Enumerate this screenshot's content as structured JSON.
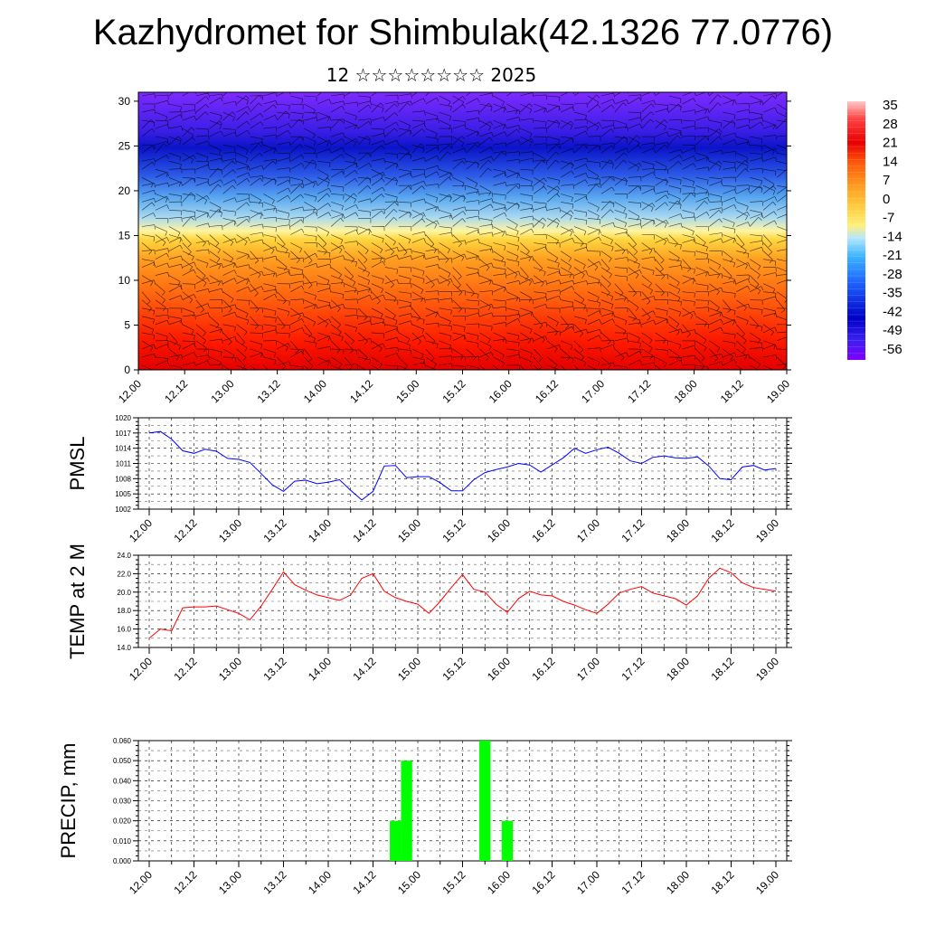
{
  "header": {
    "title": "Kazhydromet for Shimbulak(42.1326 77.0776)",
    "subtitle": "12 ☆☆☆☆☆☆☆☆ 2025"
  },
  "time_labels": [
    "12.00",
    "12.12",
    "13.00",
    "13.12",
    "14.00",
    "14.12",
    "15.00",
    "15.12",
    "16.00",
    "16.12",
    "17.00",
    "17.12",
    "18.00",
    "18.12",
    "19.00"
  ],
  "colors": {
    "pmsl_line": "#0000ff",
    "temp_line": "#ff0000",
    "precip_bar": "#00ff00",
    "colorbar": [
      "#7f00ff",
      "#3a1ff0",
      "#0000c8",
      "#1e64ff",
      "#3cb4ff",
      "#b4e6ff",
      "#fff07a",
      "#ffd23c",
      "#ffa21e",
      "#ff7814",
      "#ff3c0a",
      "#e60000",
      "#ff4040",
      "#ffb4b4"
    ]
  },
  "chart_data": [
    {
      "type": "heatmap",
      "name": "wind-temperature-cross-section",
      "x_labels": [
        "12.00",
        "12.12",
        "13.00",
        "13.12",
        "14.00",
        "14.12",
        "15.00",
        "15.12",
        "16.00",
        "16.12",
        "17.00",
        "17.12",
        "18.00",
        "18.12",
        "19.00"
      ],
      "y_ticks": [
        0,
        5,
        10,
        15,
        20,
        25,
        30
      ],
      "ylim": [
        0,
        31
      ],
      "colorbar_labels": [
        "35",
        "28",
        "21",
        "14",
        "7",
        "0",
        "-7",
        "-14",
        "-21",
        "-28",
        "-35",
        "-42",
        "-49",
        "-56"
      ],
      "colorbar_range": [
        -60,
        38
      ],
      "description_layers": "filled temperature with overlaid wind barbs"
    },
    {
      "type": "line",
      "ylabel": "PMSL",
      "y_ticks": [
        "1020",
        "1017",
        "1014",
        "1011",
        "1008",
        "1005",
        "1002"
      ],
      "ylim": [
        1002,
        1020
      ],
      "x_labels": [
        "12.00",
        "12.12",
        "13.00",
        "13.12",
        "14.00",
        "14.12",
        "15.00",
        "15.12",
        "16.00",
        "16.12",
        "17.00",
        "17.12",
        "18.00",
        "18.12",
        "19.00"
      ],
      "x": [
        0,
        1,
        2,
        3,
        4,
        5,
        6,
        7,
        8,
        9,
        10,
        11,
        12,
        13,
        14,
        15,
        16,
        17,
        18,
        19,
        20,
        21,
        22,
        23,
        24,
        25,
        26,
        27,
        28,
        29,
        30,
        31,
        32,
        33,
        34,
        35,
        36,
        37,
        38,
        39,
        40,
        41,
        42,
        43,
        44,
        45,
        46,
        47,
        48,
        49,
        50,
        51,
        52,
        53,
        54,
        55,
        56
      ],
      "values": [
        1017.0,
        1017.3,
        1015.8,
        1013.5,
        1013.0,
        1013.8,
        1013.4,
        1012.0,
        1011.8,
        1011.2,
        1009.0,
        1006.8,
        1005.5,
        1007.5,
        1007.7,
        1007.0,
        1007.3,
        1007.8,
        1005.7,
        1003.8,
        1005.5,
        1010.5,
        1010.6,
        1008.2,
        1008.4,
        1008.4,
        1007.2,
        1005.6,
        1005.6,
        1007.8,
        1009.2,
        1009.8,
        1010.3,
        1011.0,
        1010.7,
        1009.3,
        1010.7,
        1012.1,
        1014.0,
        1013.0,
        1013.7,
        1014.2,
        1013.0,
        1011.5,
        1011.0,
        1012.2,
        1012.5,
        1012.1,
        1012.0,
        1012.3,
        1010.5,
        1008.0,
        1007.8,
        1010.3,
        1010.6,
        1009.7,
        1010.0
      ]
    },
    {
      "type": "line",
      "ylabel": "TEMP at 2 M",
      "y_ticks": [
        "24.0",
        "22.0",
        "20.0",
        "18.0",
        "16.0",
        "14.0"
      ],
      "ylim": [
        14,
        24
      ],
      "x_labels": [
        "12.00",
        "12.12",
        "13.00",
        "13.12",
        "14.00",
        "14.12",
        "15.00",
        "15.12",
        "16.00",
        "16.12",
        "17.00",
        "17.12",
        "18.00",
        "18.12",
        "19.00"
      ],
      "x": [
        0,
        1,
        2,
        3,
        4,
        5,
        6,
        7,
        8,
        9,
        10,
        11,
        12,
        13,
        14,
        15,
        16,
        17,
        18,
        19,
        20,
        21,
        22,
        23,
        24,
        25,
        26,
        27,
        28,
        29,
        30,
        31,
        32,
        33,
        34,
        35,
        36,
        37,
        38,
        39,
        40,
        41,
        42,
        43,
        44,
        45,
        46,
        47,
        48,
        49,
        50,
        51,
        52,
        53,
        54,
        55,
        56
      ],
      "values": [
        15.0,
        16.0,
        15.8,
        18.3,
        18.4,
        18.4,
        18.5,
        18.1,
        17.7,
        17.0,
        18.5,
        20.3,
        22.2,
        20.8,
        20.2,
        19.7,
        19.4,
        19.1,
        19.7,
        21.5,
        22.0,
        20.1,
        19.4,
        19.0,
        18.7,
        17.7,
        19.0,
        20.5,
        21.9,
        20.3,
        20.0,
        18.7,
        17.8,
        19.3,
        20.1,
        19.7,
        19.6,
        19.0,
        18.6,
        18.1,
        17.7,
        18.7,
        19.9,
        20.3,
        20.6,
        19.9,
        19.6,
        19.3,
        18.6,
        19.6,
        21.5,
        22.6,
        22.1,
        21.0,
        20.5,
        20.3,
        20.1
      ]
    },
    {
      "type": "bar",
      "ylabel": "PRECIP, mm",
      "y_ticks": [
        "0.060",
        "0.050",
        "0.040",
        "0.030",
        "0.020",
        "0.010",
        "0.000"
      ],
      "ylim": [
        0,
        0.06
      ],
      "x_labels": [
        "12.00",
        "12.12",
        "13.00",
        "13.12",
        "14.00",
        "14.12",
        "15.00",
        "15.12",
        "16.00",
        "16.12",
        "17.00",
        "17.12",
        "18.00",
        "18.12",
        "19.00"
      ],
      "bars": [
        {
          "x": 22,
          "value": 0.02
        },
        {
          "x": 23,
          "value": 0.05
        },
        {
          "x": 30,
          "value": 0.06
        },
        {
          "x": 32,
          "value": 0.02
        }
      ]
    }
  ]
}
